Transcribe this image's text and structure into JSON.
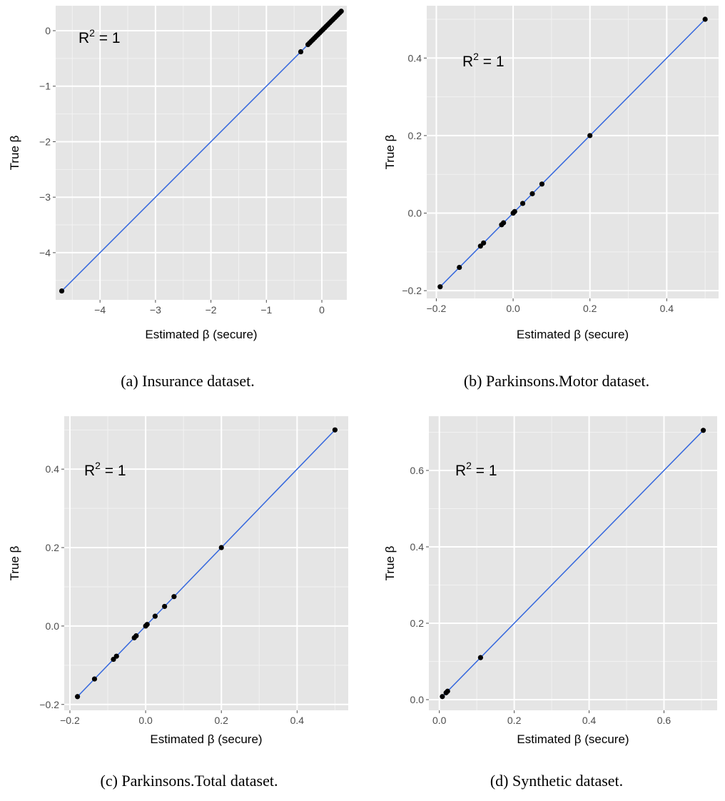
{
  "style": {
    "panel_bg": "#e5e5e5",
    "grid_major": "#ffffff",
    "grid_minor": "#f2f2f2",
    "line_color": "#3366dd",
    "point_color": "#000000"
  },
  "chart_data": [
    {
      "type": "scatter",
      "xlabel": "Estimated β (secure)",
      "ylabel": "True β",
      "annotation": {
        "label": "R",
        "sup": "2",
        "rest": " = 1"
      },
      "caption": "(a) Insurance dataset.",
      "xlim": [
        -4.8,
        0.45
      ],
      "ylim": [
        -4.85,
        0.45
      ],
      "grid": true,
      "xticks": [
        -4,
        -3,
        -2,
        -1,
        0
      ],
      "yticks": [
        -4,
        -3,
        -2,
        -1,
        0
      ],
      "xtick_labels": [
        "−4",
        "−3",
        "−2",
        "−1",
        "0"
      ],
      "ytick_labels": [
        "−4",
        "−3",
        "−2",
        "−1",
        "0"
      ],
      "line": [
        [
          -4.69,
          -4.69
        ],
        [
          0.35,
          0.35
        ]
      ],
      "points": [
        [
          -4.69,
          -4.69
        ],
        [
          -0.38,
          -0.38
        ],
        [
          -0.25,
          -0.25
        ],
        [
          -0.22,
          -0.22
        ],
        [
          -0.19,
          -0.19
        ],
        [
          -0.16,
          -0.16
        ],
        [
          -0.13,
          -0.13
        ],
        [
          -0.1,
          -0.1
        ],
        [
          -0.07,
          -0.07
        ],
        [
          -0.04,
          -0.04
        ],
        [
          -0.01,
          -0.01
        ],
        [
          0.02,
          0.02
        ],
        [
          0.05,
          0.05
        ],
        [
          0.08,
          0.08
        ],
        [
          0.11,
          0.11
        ],
        [
          0.14,
          0.14
        ],
        [
          0.17,
          0.17
        ],
        [
          0.2,
          0.2
        ],
        [
          0.23,
          0.23
        ],
        [
          0.26,
          0.26
        ],
        [
          0.29,
          0.29
        ],
        [
          0.32,
          0.32
        ],
        [
          0.35,
          0.35
        ]
      ]
    },
    {
      "type": "scatter",
      "xlabel": "Estimated β (secure)",
      "ylabel": "True β",
      "annotation": {
        "label": "R",
        "sup": "2",
        "rest": " = 1"
      },
      "caption": "(b) Parkinsons.Motor dataset.",
      "xlim": [
        -0.225,
        0.535
      ],
      "ylim": [
        -0.22,
        0.535
      ],
      "grid": true,
      "xticks": [
        -0.2,
        0.0,
        0.2,
        0.4
      ],
      "yticks": [
        -0.2,
        0.0,
        0.2,
        0.4
      ],
      "xtick_labels": [
        "−0.2",
        "0.0",
        "0.2",
        "0.4"
      ],
      "ytick_labels": [
        "−0.2",
        "0.0",
        "0.2",
        "0.4"
      ],
      "line": [
        [
          -0.19,
          -0.19
        ],
        [
          0.5,
          0.5
        ]
      ],
      "points": [
        [
          -0.19,
          -0.19
        ],
        [
          -0.14,
          -0.14
        ],
        [
          -0.085,
          -0.085
        ],
        [
          -0.077,
          -0.077
        ],
        [
          -0.03,
          -0.03
        ],
        [
          -0.025,
          -0.025
        ],
        [
          0.0,
          0.0
        ],
        [
          0.004,
          0.004
        ],
        [
          0.025,
          0.025
        ],
        [
          0.05,
          0.05
        ],
        [
          0.075,
          0.075
        ],
        [
          0.2,
          0.2
        ],
        [
          0.5,
          0.5
        ]
      ]
    },
    {
      "type": "scatter",
      "xlabel": "Estimated β (secure)",
      "ylabel": "True β",
      "annotation": {
        "label": "R",
        "sup": "2",
        "rest": " = 1"
      },
      "caption": "(c) Parkinsons.Total dataset.",
      "xlim": [
        -0.215,
        0.535
      ],
      "ylim": [
        -0.215,
        0.535
      ],
      "grid": true,
      "xticks": [
        -0.2,
        0.0,
        0.2,
        0.4
      ],
      "yticks": [
        -0.2,
        0.0,
        0.2,
        0.4
      ],
      "xtick_labels": [
        "−0.2",
        "0.0",
        "0.2",
        "0.4"
      ],
      "ytick_labels": [
        "−0.2",
        "0.0",
        "0.2",
        "0.4"
      ],
      "line": [
        [
          -0.18,
          -0.18
        ],
        [
          0.5,
          0.5
        ]
      ],
      "points": [
        [
          -0.18,
          -0.18
        ],
        [
          -0.135,
          -0.135
        ],
        [
          -0.085,
          -0.085
        ],
        [
          -0.077,
          -0.077
        ],
        [
          -0.03,
          -0.03
        ],
        [
          -0.025,
          -0.025
        ],
        [
          0.0,
          0.0
        ],
        [
          0.004,
          0.004
        ],
        [
          0.025,
          0.025
        ],
        [
          0.05,
          0.05
        ],
        [
          0.075,
          0.075
        ],
        [
          0.2,
          0.2
        ],
        [
          0.5,
          0.5
        ]
      ]
    },
    {
      "type": "scatter",
      "xlabel": "Estimated β (secure)",
      "ylabel": "True β",
      "annotation": {
        "label": "R",
        "sup": "2",
        "rest": " = 1"
      },
      "caption": "(d) Synthetic dataset.",
      "xlim": [
        -0.028,
        0.742
      ],
      "ylim": [
        -0.028,
        0.742
      ],
      "grid": true,
      "xticks": [
        0.0,
        0.2,
        0.4,
        0.6
      ],
      "yticks": [
        0.0,
        0.2,
        0.4,
        0.6
      ],
      "xtick_labels": [
        "0.0",
        "0.2",
        "0.4",
        "0.6"
      ],
      "ytick_labels": [
        "0.0",
        "0.2",
        "0.4",
        "0.6"
      ],
      "line": [
        [
          0.008,
          0.008
        ],
        [
          0.705,
          0.705
        ]
      ],
      "points": [
        [
          0.008,
          0.008
        ],
        [
          0.018,
          0.018
        ],
        [
          0.022,
          0.022
        ],
        [
          0.11,
          0.11
        ],
        [
          0.705,
          0.705
        ]
      ]
    }
  ]
}
